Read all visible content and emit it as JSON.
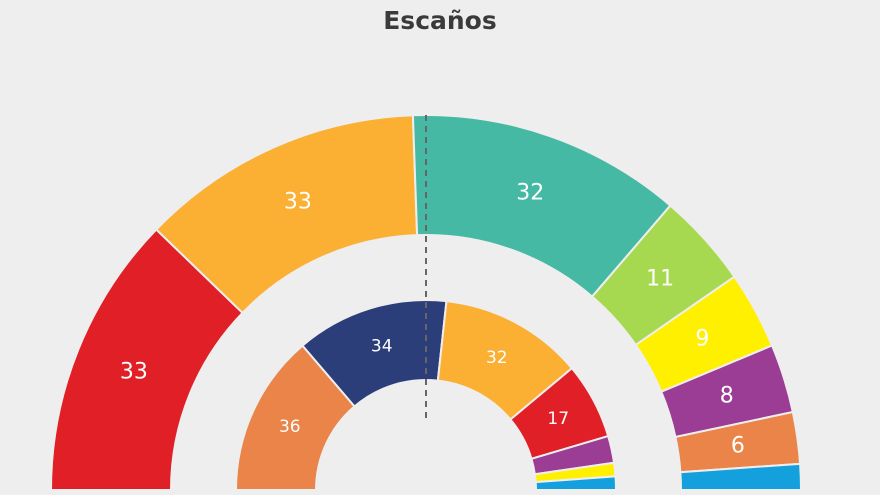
{
  "chart_data": {
    "type": "pie",
    "subtype": "semicircle-parliament",
    "title": "Escaños",
    "majority_line": "dashed",
    "rings": [
      {
        "ring": "outer",
        "segments": [
          {
            "value": 33,
            "label": "33",
            "color": "#e01f26"
          },
          {
            "value": 33,
            "label": "33",
            "color": "#fbb034"
          },
          {
            "value": 32,
            "label": "32",
            "color": "#45b9a3"
          },
          {
            "value": 11,
            "label": "11",
            "color": "#a6d94f"
          },
          {
            "value": 9,
            "label": "9",
            "color": "#fff000"
          },
          {
            "value": 8,
            "label": "8",
            "color": "#9b3c95"
          },
          {
            "value": 6,
            "label": "6",
            "color": "#ea8448"
          },
          {
            "value": 3,
            "label": "",
            "color": "#14a0dc"
          }
        ]
      },
      {
        "ring": "inner",
        "segments": [
          {
            "value": 36,
            "label": "36",
            "color": "#ea8448"
          },
          {
            "value": 34,
            "label": "34",
            "color": "#2c3e79"
          },
          {
            "value": 32,
            "label": "32",
            "color": "#fbb034"
          },
          {
            "value": 17,
            "label": "17",
            "color": "#e01f26"
          },
          {
            "value": 6,
            "label": "",
            "color": "#9b3c95"
          },
          {
            "value": 3,
            "label": "",
            "color": "#fff000"
          },
          {
            "value": 3,
            "label": "",
            "color": "#14a0dc"
          }
        ]
      }
    ]
  }
}
